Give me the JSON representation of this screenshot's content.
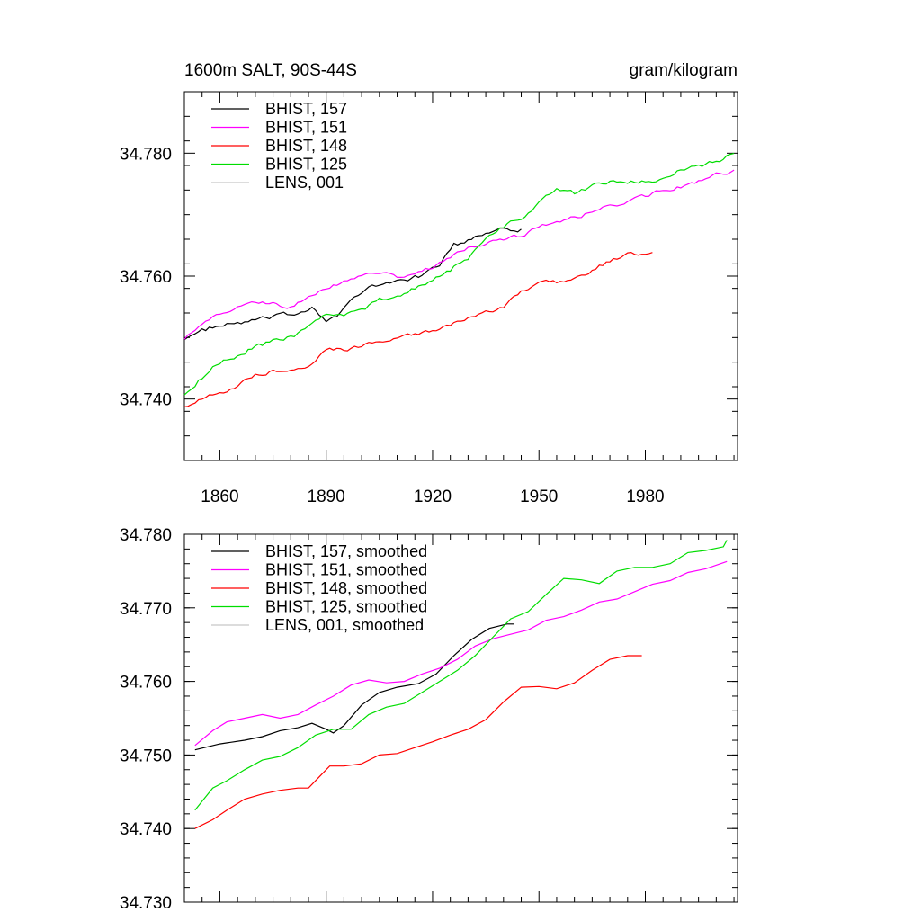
{
  "panels": [
    {
      "title_left": "1600m SALT, 90S-44S",
      "title_right": "gram/kilogram",
      "chart_data": {
        "type": "line",
        "xlim": [
          1850,
          2006
        ],
        "ylim": [
          34.73,
          34.79
        ],
        "x_ticks": [
          1860,
          1890,
          1920,
          1950,
          1980
        ],
        "x_tick_labels": [
          "1860",
          "1890",
          "1920",
          "1950",
          "1980"
        ],
        "y_ticks": [
          34.74,
          34.76,
          34.78
        ],
        "y_tick_labels": [
          "34.740",
          "34.760",
          "34.780"
        ],
        "legend_placement": "top-left",
        "series": [
          {
            "name": "BHIST, 157",
            "color": "#000000",
            "noise": 0.0006,
            "x": [
              1850,
              1853,
              1857,
              1862,
              1867,
              1872,
              1877,
              1882,
              1886,
              1890,
              1893,
              1897,
              1902,
              1908,
              1912,
              1917,
              1922,
              1926,
              1931,
              1935,
              1940,
              1945
            ],
            "y": [
              34.75,
              34.7505,
              34.7515,
              34.752,
              34.7525,
              34.753,
              34.7535,
              34.754,
              34.755,
              34.753,
              34.7535,
              34.756,
              34.758,
              34.759,
              34.7595,
              34.76,
              34.762,
              34.765,
              34.766,
              34.767,
              34.768,
              34.7675
            ]
          },
          {
            "name": "BHIST, 151",
            "color": "#ff00ff",
            "noise": 0.0005,
            "x": [
              1850,
              1855,
              1860,
              1865,
              1870,
              1875,
              1880,
              1885,
              1890,
              1895,
              1900,
              1905,
              1910,
              1915,
              1920,
              1925,
              1930,
              1935,
              1940,
              1945,
              1950,
              1955,
              1960,
              1965,
              1970,
              1975,
              1980,
              1985,
              1990,
              1995,
              2000,
              2005
            ],
            "y": [
              34.75,
              34.752,
              34.754,
              34.755,
              34.7555,
              34.7555,
              34.755,
              34.7565,
              34.758,
              34.759,
              34.76,
              34.7605,
              34.76,
              34.7605,
              34.7615,
              34.763,
              34.7645,
              34.7655,
              34.766,
              34.7665,
              34.768,
              34.769,
              34.7695,
              34.7705,
              34.7715,
              34.772,
              34.773,
              34.774,
              34.7745,
              34.7755,
              34.7765,
              34.777
            ]
          },
          {
            "name": "BHIST, 148",
            "color": "#ff0000",
            "noise": 0.0005,
            "x": [
              1850,
              1855,
              1860,
              1865,
              1870,
              1875,
              1880,
              1885,
              1890,
              1895,
              1900,
              1905,
              1910,
              1915,
              1920,
              1925,
              1930,
              1935,
              1940,
              1945,
              1950,
              1955,
              1960,
              1965,
              1970,
              1975,
              1982
            ],
            "y": [
              34.739,
              34.74,
              34.741,
              34.742,
              34.744,
              34.7445,
              34.745,
              34.7455,
              34.748,
              34.748,
              34.7485,
              34.7495,
              34.75,
              34.7505,
              34.751,
              34.752,
              34.753,
              34.754,
              34.755,
              34.7575,
              34.759,
              34.759,
              34.7595,
              34.761,
              34.7625,
              34.7635,
              34.764
            ]
          },
          {
            "name": "BHIST, 125",
            "color": "#00dd00",
            "noise": 0.0006,
            "x": [
              1850,
              1855,
              1860,
              1865,
              1870,
              1875,
              1880,
              1885,
              1890,
              1895,
              1900,
              1905,
              1910,
              1915,
              1920,
              1925,
              1930,
              1935,
              1940,
              1945,
              1950,
              1955,
              1960,
              1965,
              1970,
              1975,
              1980,
              1985,
              1990,
              1995,
              2000,
              2005
            ],
            "y": [
              34.741,
              34.7435,
              34.746,
              34.747,
              34.7485,
              34.7495,
              34.75,
              34.7515,
              34.7535,
              34.7535,
              34.7545,
              34.756,
              34.7565,
              34.758,
              34.7595,
              34.761,
              34.763,
              34.766,
              34.768,
              34.7695,
              34.772,
              34.774,
              34.7735,
              34.7745,
              34.7755,
              34.7755,
              34.7755,
              34.776,
              34.7775,
              34.778,
              34.7785,
              34.78
            ]
          },
          {
            "name": "LENS, 001",
            "color": "#c8c8c8",
            "noise": 0,
            "x": [],
            "y": []
          }
        ]
      }
    },
    {
      "chart_data": {
        "type": "line",
        "xlim": [
          1850,
          2006
        ],
        "ylim": [
          34.73,
          34.78
        ],
        "x_ticks": [
          1860,
          1890,
          1920,
          1950,
          1980
        ],
        "x_tick_labels": [],
        "y_ticks": [
          34.73,
          34.74,
          34.75,
          34.76,
          34.77,
          34.78
        ],
        "y_tick_labels": [
          "34.730",
          "34.740",
          "34.750",
          "34.760",
          "34.770",
          "34.780"
        ],
        "legend_placement": "top-left",
        "series": [
          {
            "name": "BHIST, 157, smoothed",
            "color": "#000000",
            "noise": 0,
            "x": [
              1853,
              1860,
              1867,
              1872,
              1877,
              1882,
              1886,
              1890,
              1892,
              1895,
              1900,
              1905,
              1910,
              1916,
              1921,
              1926,
              1931,
              1936,
              1941,
              1943
            ],
            "y": [
              34.7507,
              34.7515,
              34.752,
              34.7525,
              34.7533,
              34.7537,
              34.7543,
              34.7535,
              34.753,
              34.754,
              34.7568,
              34.7585,
              34.7592,
              34.7597,
              34.761,
              34.7635,
              34.7657,
              34.7672,
              34.7678,
              34.7678
            ]
          },
          {
            "name": "BHIST, 151, smoothed",
            "color": "#ff00ff",
            "noise": 0,
            "x": [
              1853,
              1858,
              1862,
              1867,
              1872,
              1877,
              1882,
              1887,
              1892,
              1897,
              1902,
              1907,
              1912,
              1917,
              1922,
              1927,
              1932,
              1937,
              1942,
              1947,
              1952,
              1957,
              1962,
              1967,
              1972,
              1977,
              1982,
              1987,
              1992,
              1997,
              2003
            ],
            "y": [
              34.7513,
              34.7533,
              34.7545,
              34.755,
              34.7555,
              34.755,
              34.7555,
              34.7568,
              34.758,
              34.7595,
              34.7602,
              34.7598,
              34.76,
              34.761,
              34.7618,
              34.763,
              34.7648,
              34.7658,
              34.7664,
              34.767,
              34.7683,
              34.7688,
              34.7697,
              34.7708,
              34.7712,
              34.7722,
              34.7732,
              34.7737,
              34.7748,
              34.7753,
              34.7763
            ]
          },
          {
            "name": "BHIST, 148, smoothed",
            "color": "#ff0000",
            "noise": 0,
            "x": [
              1853,
              1858,
              1862,
              1867,
              1872,
              1877,
              1882,
              1885,
              1888,
              1891,
              1895,
              1900,
              1905,
              1910,
              1915,
              1920,
              1925,
              1930,
              1935,
              1940,
              1945,
              1950,
              1955,
              1960,
              1965,
              1970,
              1975,
              1979
            ],
            "y": [
              34.74,
              34.7412,
              34.7425,
              34.744,
              34.7447,
              34.7452,
              34.7455,
              34.7455,
              34.747,
              34.7485,
              34.7485,
              34.7488,
              34.75,
              34.7502,
              34.751,
              34.7518,
              34.7527,
              34.7535,
              34.7548,
              34.7572,
              34.7592,
              34.7593,
              34.759,
              34.7598,
              34.7615,
              34.763,
              34.7635,
              34.7635
            ]
          },
          {
            "name": "BHIST, 125, smoothed",
            "color": "#00dd00",
            "noise": 0,
            "x": [
              1853,
              1858,
              1862,
              1867,
              1872,
              1877,
              1882,
              1887,
              1892,
              1897,
              1902,
              1907,
              1912,
              1917,
              1922,
              1927,
              1932,
              1937,
              1942,
              1947,
              1952,
              1957,
              1962,
              1967,
              1972,
              1977,
              1982,
              1987,
              1992,
              1997,
              2002,
              2003
            ],
            "y": [
              34.7425,
              34.7455,
              34.7465,
              34.748,
              34.7493,
              34.7498,
              34.751,
              34.7527,
              34.7535,
              34.7535,
              34.7555,
              34.7565,
              34.757,
              34.7585,
              34.76,
              34.7615,
              34.7635,
              34.766,
              34.7685,
              34.7695,
              34.7718,
              34.774,
              34.7738,
              34.7733,
              34.775,
              34.7755,
              34.7755,
              34.776,
              34.7775,
              34.7778,
              34.7783,
              34.7792
            ]
          },
          {
            "name": "LENS, 001, smoothed",
            "color": "#c8c8c8",
            "noise": 0,
            "x": [],
            "y": []
          }
        ]
      }
    }
  ]
}
